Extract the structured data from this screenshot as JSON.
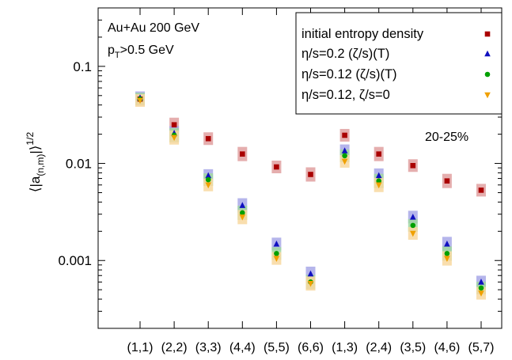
{
  "chart_data": {
    "type": "scatter",
    "ylabel_base": "⟨|a",
    "ylabel_sub": "(n,m)",
    "ylabel_end": "|⟩",
    "ylabel_sup": "1/2",
    "yscale": "log",
    "ylim": [
      0.0002,
      0.4
    ],
    "ytick_labels": [
      "0.1",
      "0.01",
      "0.001"
    ],
    "ytick_values": [
      0.1,
      0.01,
      0.001
    ],
    "categories": [
      "(1,1)",
      "(2,2)",
      "(3,3)",
      "(4,4)",
      "(5,5)",
      "(6,6)",
      "(1,3)",
      "(2,4)",
      "(3,5)",
      "(4,6)",
      "(5,7)"
    ],
    "annotations": {
      "system": "Au+Au 200 GeV",
      "pt_cut_main": "p",
      "pt_cut_sub": "T",
      "pt_cut_rest": ">0.5 GeV",
      "centrality": "20-25%"
    },
    "legend_position": "top-right",
    "series": [
      {
        "name": "initial entropy density",
        "marker": "square",
        "color": "#aa0000",
        "band_color": "#e0a0a0",
        "values": [
          0.046,
          0.025,
          0.018,
          0.0125,
          0.0092,
          0.0077,
          0.0195,
          0.0125,
          0.0095,
          0.0066,
          0.0053
        ]
      },
      {
        "name": "η/s=0.2 (ζ/s)(T)",
        "marker": "triangle-up",
        "color": "#1010c0",
        "band_color": "#a8a8e8",
        "values": [
          0.0475,
          0.0205,
          0.0075,
          0.0037,
          0.00148,
          0.00073,
          0.0135,
          0.0075,
          0.0028,
          0.00148,
          0.0006
        ]
      },
      {
        "name": "η/s=0.12 (ζ/s)(T)",
        "marker": "circle",
        "color": "#00a000",
        "band_color": "#a0d8a0",
        "values": [
          0.046,
          0.0195,
          0.0068,
          0.0031,
          0.00118,
          0.0006,
          0.012,
          0.0066,
          0.0023,
          0.00118,
          0.00052
        ]
      },
      {
        "name": "η/s=0.12, ζ/s=0",
        "marker": "triangle-down",
        "color": "#f0a000",
        "band_color": "#f8d8a0",
        "values": [
          0.0445,
          0.0185,
          0.006,
          0.0028,
          0.00105,
          0.00058,
          0.0105,
          0.006,
          0.0019,
          0.00105,
          0.00046
        ]
      }
    ]
  }
}
